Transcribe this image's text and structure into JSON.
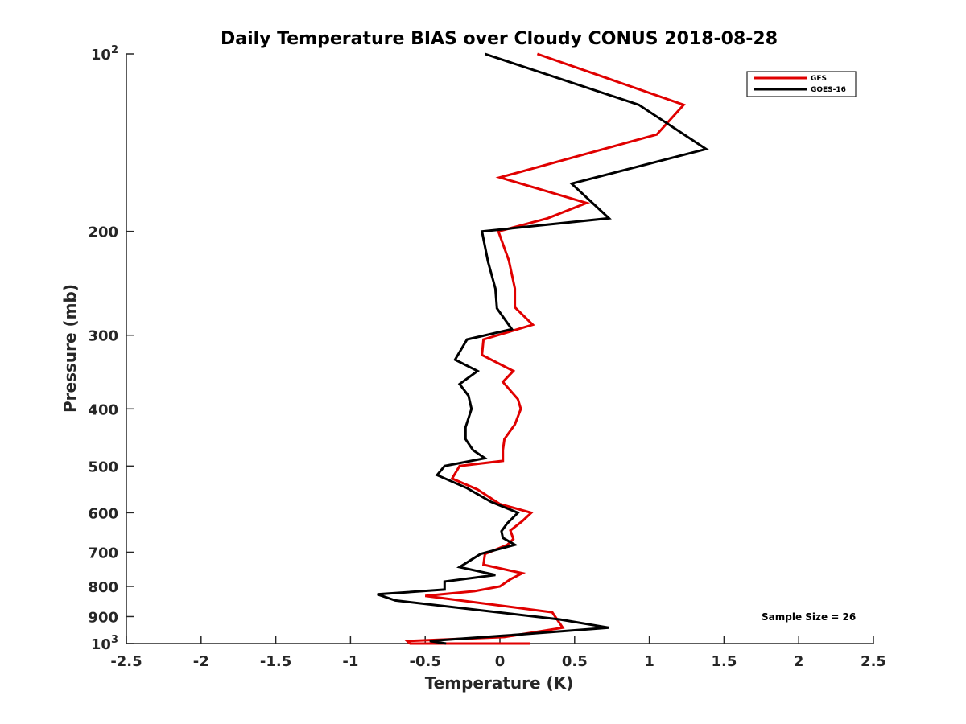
{
  "chart_data": {
    "type": "line",
    "title": "Daily Temperature BIAS over Cloudy CONUS 2018-08-28",
    "xlabel": "Temperature (K)",
    "ylabel": "Pressure (mb)",
    "xlim": [
      -2.5,
      2.5
    ],
    "ylim": [
      1000,
      100
    ],
    "yscale": "log",
    "grid": false,
    "legend_position": "top-right",
    "x_ticks": [
      {
        "value": -2.5,
        "label": "-2.5"
      },
      {
        "value": -2,
        "label": "-2"
      },
      {
        "value": -1.5,
        "label": "-1.5"
      },
      {
        "value": -1,
        "label": "-1"
      },
      {
        "value": -0.5,
        "label": "-0.5"
      },
      {
        "value": 0,
        "label": "0"
      },
      {
        "value": 0.5,
        "label": "0.5"
      },
      {
        "value": 1,
        "label": "1"
      },
      {
        "value": 1.5,
        "label": "1.5"
      },
      {
        "value": 2,
        "label": "2"
      },
      {
        "value": 2.5,
        "label": "2.5"
      }
    ],
    "y_ticks": [
      {
        "value": 100,
        "label": "10",
        "sup": "2"
      },
      {
        "value": 200,
        "label": "200",
        "sup": ""
      },
      {
        "value": 300,
        "label": "300",
        "sup": ""
      },
      {
        "value": 400,
        "label": "400",
        "sup": ""
      },
      {
        "value": 500,
        "label": "500",
        "sup": ""
      },
      {
        "value": 600,
        "label": "600",
        "sup": ""
      },
      {
        "value": 700,
        "label": "700",
        "sup": ""
      },
      {
        "value": 800,
        "label": "800",
        "sup": ""
      },
      {
        "value": 900,
        "label": "900",
        "sup": ""
      },
      {
        "value": 1000,
        "label": "10",
        "sup": "3"
      }
    ],
    "series": [
      {
        "name": "GFS",
        "color": "#e00000",
        "points": [
          [
            0.25,
            100
          ],
          [
            1.23,
            122
          ],
          [
            1.05,
            137
          ],
          [
            0.0,
            162
          ],
          [
            0.58,
            179
          ],
          [
            0.32,
            190
          ],
          [
            -0.01,
            200
          ],
          [
            0.06,
            224
          ],
          [
            0.1,
            250
          ],
          [
            0.1,
            269
          ],
          [
            0.22,
            288
          ],
          [
            -0.11,
            305
          ],
          [
            -0.12,
            324
          ],
          [
            0.09,
            345
          ],
          [
            0.02,
            360
          ],
          [
            0.12,
            385
          ],
          [
            0.14,
            400
          ],
          [
            0.1,
            425
          ],
          [
            0.03,
            450
          ],
          [
            0.02,
            470
          ],
          [
            0.02,
            490
          ],
          [
            -0.27,
            500
          ],
          [
            -0.32,
            525
          ],
          [
            -0.15,
            548
          ],
          [
            0.0,
            580
          ],
          [
            0.21,
            600
          ],
          [
            0.15,
            620
          ],
          [
            0.07,
            643
          ],
          [
            0.09,
            665
          ],
          [
            0.05,
            680
          ],
          [
            -0.1,
            705
          ],
          [
            -0.11,
            735
          ],
          [
            0.15,
            760
          ],
          [
            0.07,
            778
          ],
          [
            0.0,
            800
          ],
          [
            -0.17,
            815
          ],
          [
            -0.5,
            830
          ],
          [
            0.35,
            885
          ],
          [
            0.42,
            940
          ],
          [
            0.03,
            975
          ],
          [
            -0.62,
            990
          ],
          [
            -0.6,
            1000
          ],
          [
            0.2,
            1000
          ]
        ]
      },
      {
        "name": "GOES-16",
        "color": "#000000",
        "points": [
          [
            -0.1,
            100
          ],
          [
            0.93,
            122
          ],
          [
            1.38,
            145
          ],
          [
            0.48,
            166
          ],
          [
            0.73,
            190
          ],
          [
            -0.12,
            200
          ],
          [
            -0.08,
            225
          ],
          [
            -0.03,
            250
          ],
          [
            -0.02,
            270
          ],
          [
            0.08,
            293
          ],
          [
            -0.22,
            305
          ],
          [
            -0.3,
            330
          ],
          [
            -0.15,
            345
          ],
          [
            -0.27,
            363
          ],
          [
            -0.21,
            380
          ],
          [
            -0.19,
            400
          ],
          [
            -0.23,
            430
          ],
          [
            -0.23,
            450
          ],
          [
            -0.18,
            470
          ],
          [
            -0.1,
            485
          ],
          [
            -0.37,
            500
          ],
          [
            -0.42,
            518
          ],
          [
            -0.22,
            545
          ],
          [
            -0.06,
            575
          ],
          [
            0.12,
            600
          ],
          [
            0.05,
            625
          ],
          [
            0.01,
            645
          ],
          [
            0.02,
            662
          ],
          [
            0.1,
            680
          ],
          [
            -0.13,
            705
          ],
          [
            -0.27,
            742
          ],
          [
            -0.03,
            765
          ],
          [
            -0.37,
            785
          ],
          [
            -0.37,
            810
          ],
          [
            -0.82,
            825
          ],
          [
            -0.7,
            845
          ],
          [
            0.4,
            910
          ],
          [
            0.73,
            940
          ],
          [
            0.02,
            970
          ],
          [
            -0.47,
            990
          ],
          [
            -0.36,
            1000
          ]
        ]
      }
    ],
    "annotations": [
      {
        "text": "Sample Size = 26"
      }
    ]
  }
}
